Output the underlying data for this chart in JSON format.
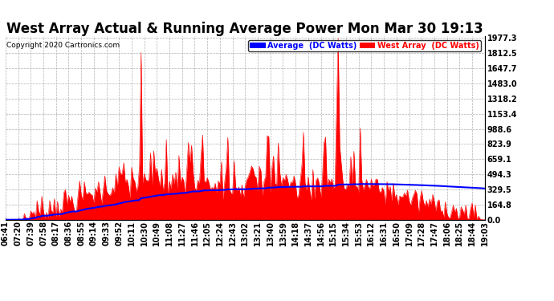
{
  "title": "West Array Actual & Running Average Power Mon Mar 30 19:13",
  "copyright": "Copyright 2020 Cartronics.com",
  "yticks": [
    0.0,
    164.8,
    329.5,
    494.3,
    659.1,
    823.9,
    988.6,
    1153.4,
    1318.2,
    1483.0,
    1647.7,
    1812.5,
    1977.3
  ],
  "ymax": 1977.3,
  "ymin": 0.0,
  "legend_avg_label": "Average  (DC Watts)",
  "legend_west_label": "West Array  (DC Watts)",
  "avg_color": "#0000ff",
  "west_color": "#ff0000",
  "background_color": "#ffffff",
  "grid_color": "#b0b0b0",
  "title_fontsize": 12,
  "tick_fontsize": 7,
  "xtick_labels": [
    "06:41",
    "07:20",
    "07:39",
    "07:58",
    "08:17",
    "08:36",
    "08:55",
    "09:14",
    "09:33",
    "09:52",
    "10:11",
    "10:30",
    "10:49",
    "11:08",
    "11:27",
    "11:46",
    "12:05",
    "12:24",
    "12:43",
    "13:02",
    "13:21",
    "13:40",
    "13:59",
    "14:18",
    "14:37",
    "14:56",
    "15:15",
    "15:34",
    "15:53",
    "16:12",
    "16:31",
    "16:50",
    "17:09",
    "17:28",
    "17:47",
    "18:06",
    "18:25",
    "18:44",
    "19:03"
  ]
}
